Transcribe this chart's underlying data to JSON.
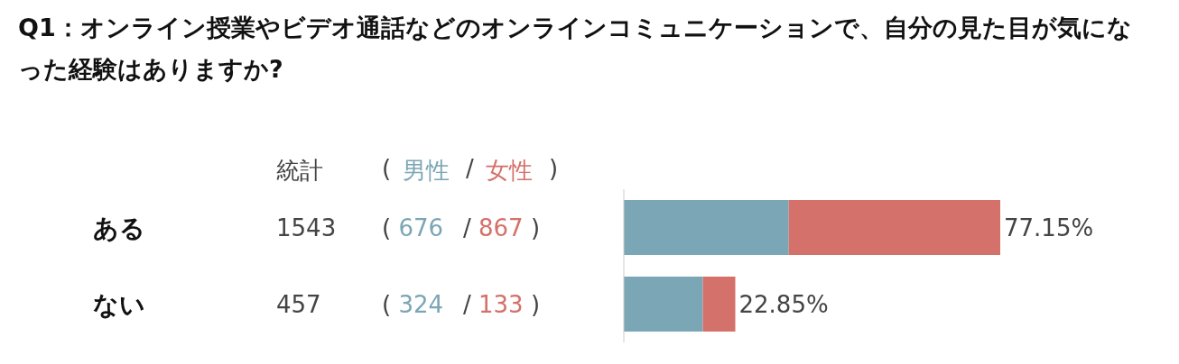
{
  "chart_data": {
    "type": "bar",
    "orientation": "horizontal",
    "stacked": true,
    "title": "Q1：オンライン授業やビデオ通話などのオンラインコミュニケーションで、自分の見た目が気になった経験はありますか?",
    "legend_title": "統計",
    "categories": [
      "ある",
      "ない"
    ],
    "series": [
      {
        "name": "男性",
        "color": "#7ba6b5",
        "values": [
          676,
          324
        ],
        "value_labels": [
          "( 676",
          "( 324"
        ]
      },
      {
        "name": "女性",
        "color": "#d4716a",
        "values": [
          867,
          133
        ],
        "value_labels": [
          "/ 867 )",
          "/ 133 )"
        ]
      }
    ],
    "annotations": [
      "(",
      "/",
      ")",
      "1543",
      "457",
      {
        "text": "77.15%",
        "x": 1543,
        "y": "ある"
      },
      {
        "text": "22.85%",
        "x": 457,
        "y": "ない"
      }
    ],
    "tick_labels": "y",
    "legend": "top left"
  }
}
